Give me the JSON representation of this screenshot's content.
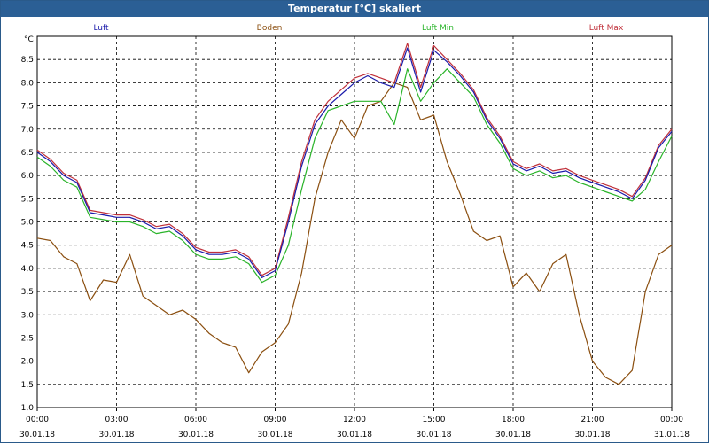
{
  "window": {
    "title": "Temperatur [°C] skaliert"
  },
  "chart_data": {
    "type": "line",
    "title": "Temperatur [°C] skaliert",
    "ylabel": "°C",
    "ylim": [
      1.0,
      9.0
    ],
    "xlim_hours": [
      0,
      24
    ],
    "grid": true,
    "y_ticks": [
      "1,0",
      "1,5",
      "2,0",
      "2,5",
      "3,0",
      "3,5",
      "4,0",
      "4,5",
      "5,0",
      "5,5",
      "6,0",
      "6,5",
      "7,0",
      "7,5",
      "8,0",
      "8,5"
    ],
    "x_ticks": [
      {
        "time": "00:00",
        "date": "30.01.18"
      },
      {
        "time": "03:00",
        "date": "30.01.18"
      },
      {
        "time": "06:00",
        "date": "30.01.18"
      },
      {
        "time": "09:00",
        "date": "30.01.18"
      },
      {
        "time": "12:00",
        "date": "30.01.18"
      },
      {
        "time": "15:00",
        "date": "30.01.18"
      },
      {
        "time": "18:00",
        "date": "30.01.18"
      },
      {
        "time": "21:00",
        "date": "30.01.18"
      },
      {
        "time": "00:00",
        "date": "31.01.18"
      }
    ],
    "series": [
      {
        "name": "Luft",
        "color": "#1a1aaa",
        "x": [
          0,
          0.5,
          1,
          1.5,
          2,
          2.5,
          3,
          3.5,
          4,
          4.5,
          5,
          5.5,
          6,
          6.5,
          7,
          7.5,
          8,
          8.5,
          9,
          9.5,
          10,
          10.5,
          11,
          11.5,
          12,
          12.5,
          13,
          13.5,
          14,
          14.5,
          15,
          15.5,
          16,
          16.5,
          17,
          17.5,
          18,
          18.5,
          19,
          19.5,
          20,
          20.5,
          21,
          21.5,
          22,
          22.5,
          23,
          23.5,
          24
        ],
        "values": [
          6.5,
          6.3,
          6.0,
          5.85,
          5.2,
          5.15,
          5.1,
          5.1,
          5.0,
          4.85,
          4.9,
          4.7,
          4.4,
          4.3,
          4.3,
          4.35,
          4.2,
          3.8,
          3.95,
          5.0,
          6.2,
          7.1,
          7.5,
          7.75,
          8.0,
          8.15,
          8.0,
          7.9,
          8.75,
          7.8,
          8.7,
          8.45,
          8.15,
          7.8,
          7.2,
          6.8,
          6.25,
          6.1,
          6.2,
          6.05,
          6.1,
          5.95,
          5.85,
          5.75,
          5.65,
          5.5,
          5.9,
          6.6,
          6.95
        ]
      },
      {
        "name": "Boden",
        "color": "#8b4f10",
        "x": [
          0,
          0.5,
          1,
          1.5,
          2,
          2.5,
          3,
          3.5,
          4,
          4.5,
          5,
          5.5,
          6,
          6.5,
          7,
          7.5,
          8,
          8.5,
          9,
          9.5,
          10,
          10.5,
          11,
          11.5,
          12,
          12.5,
          13,
          13.5,
          14,
          14.5,
          15,
          15.5,
          16,
          16.5,
          17,
          17.5,
          18,
          18.5,
          19,
          19.5,
          20,
          20.5,
          21,
          21.5,
          22,
          22.5,
          23,
          23.5,
          24
        ],
        "values": [
          4.65,
          4.6,
          4.25,
          4.1,
          3.3,
          3.75,
          3.7,
          4.3,
          3.4,
          3.2,
          3.0,
          3.1,
          2.9,
          2.6,
          2.4,
          2.3,
          1.75,
          2.2,
          2.4,
          2.8,
          3.9,
          5.5,
          6.5,
          7.2,
          6.8,
          7.5,
          7.6,
          8.0,
          7.9,
          7.2,
          7.3,
          6.3,
          5.6,
          4.8,
          4.6,
          4.7,
          3.6,
          3.9,
          3.5,
          4.1,
          4.3,
          3.0,
          2.0,
          1.65,
          1.5,
          1.8,
          3.5,
          4.3,
          4.5
        ]
      },
      {
        "name": "Luft Min",
        "color": "#2ab42a",
        "x": [
          0,
          0.5,
          1,
          1.5,
          2,
          2.5,
          3,
          3.5,
          4,
          4.5,
          5,
          5.5,
          6,
          6.5,
          7,
          7.5,
          8,
          8.5,
          9,
          9.5,
          10,
          10.5,
          11,
          11.5,
          12,
          12.5,
          13,
          13.5,
          14,
          14.5,
          15,
          15.5,
          16,
          16.5,
          17,
          17.5,
          18,
          18.5,
          19,
          19.5,
          20,
          20.5,
          21,
          21.5,
          22,
          22.5,
          23,
          23.5,
          24
        ],
        "values": [
          6.4,
          6.2,
          5.9,
          5.75,
          5.1,
          5.05,
          5.0,
          5.0,
          4.9,
          4.75,
          4.8,
          4.6,
          4.3,
          4.2,
          4.2,
          4.25,
          4.1,
          3.7,
          3.85,
          4.5,
          5.7,
          6.8,
          7.4,
          7.5,
          7.6,
          7.6,
          7.6,
          7.1,
          8.3,
          7.6,
          8.0,
          8.3,
          8.0,
          7.7,
          7.1,
          6.7,
          6.15,
          6.0,
          6.1,
          5.95,
          6.0,
          5.85,
          5.75,
          5.65,
          5.55,
          5.45,
          5.7,
          6.3,
          6.85
        ]
      },
      {
        "name": "Luft Max",
        "color": "#c0303a",
        "x": [
          0,
          0.5,
          1,
          1.5,
          2,
          2.5,
          3,
          3.5,
          4,
          4.5,
          5,
          5.5,
          6,
          6.5,
          7,
          7.5,
          8,
          8.5,
          9,
          9.5,
          10,
          10.5,
          11,
          11.5,
          12,
          12.5,
          13,
          13.5,
          14,
          14.5,
          15,
          15.5,
          16,
          16.5,
          17,
          17.5,
          18,
          18.5,
          19,
          19.5,
          20,
          20.5,
          21,
          21.5,
          22,
          22.5,
          23,
          23.5,
          24
        ],
        "values": [
          6.55,
          6.35,
          6.05,
          5.9,
          5.25,
          5.2,
          5.15,
          5.15,
          5.05,
          4.9,
          4.95,
          4.75,
          4.45,
          4.35,
          4.35,
          4.4,
          4.25,
          3.85,
          4.0,
          5.1,
          6.3,
          7.2,
          7.6,
          7.85,
          8.1,
          8.2,
          8.1,
          8.0,
          8.85,
          7.9,
          8.8,
          8.5,
          8.2,
          7.85,
          7.25,
          6.85,
          6.3,
          6.15,
          6.25,
          6.1,
          6.15,
          6.0,
          5.9,
          5.8,
          5.7,
          5.55,
          5.95,
          6.65,
          7.0
        ]
      }
    ]
  }
}
